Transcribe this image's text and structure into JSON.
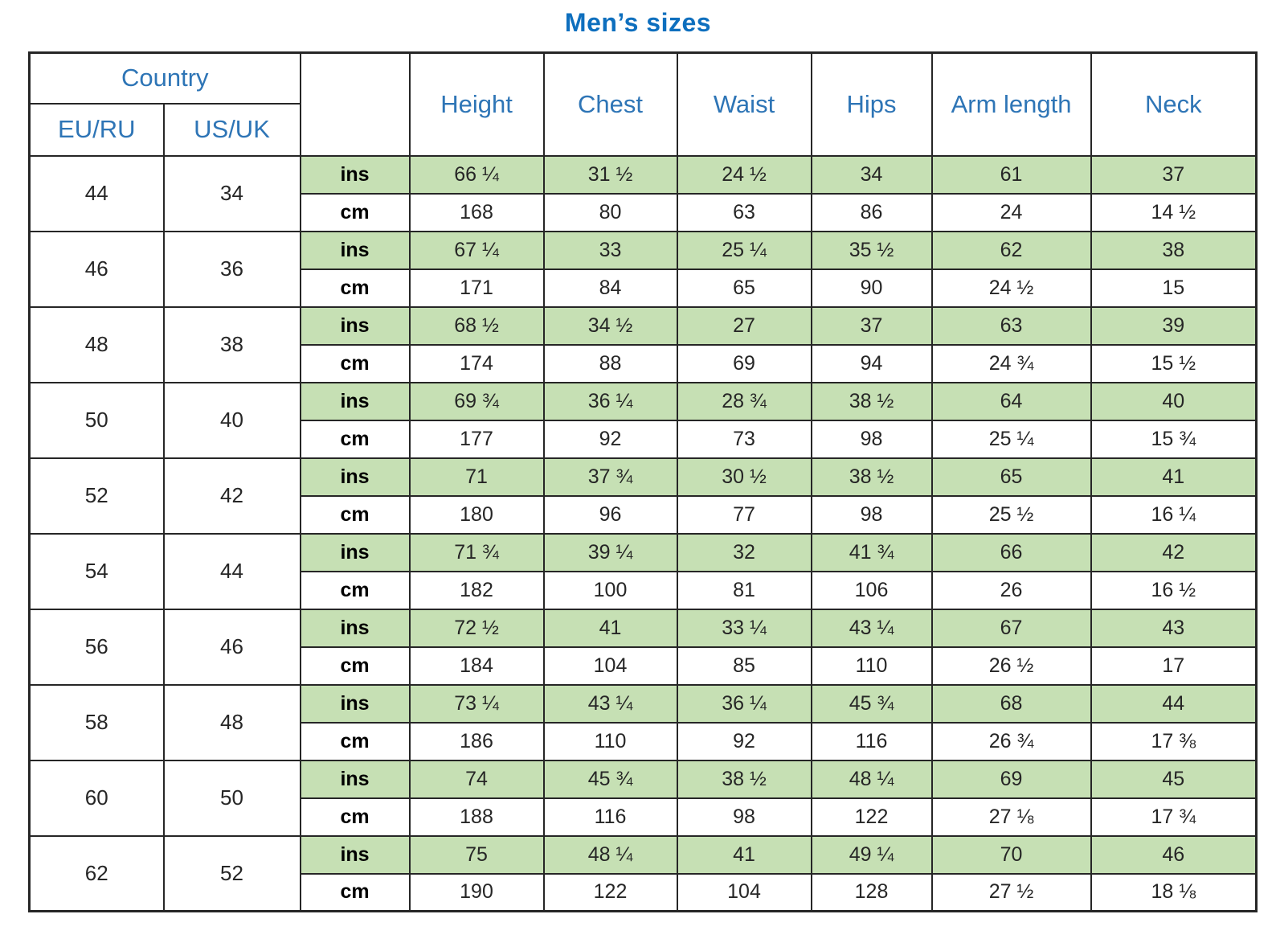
{
  "title": "Men’s sizes",
  "colors": {
    "row_green": "#c6e0b4",
    "header_blue": "#2e75b6",
    "title_blue": "#0e6fbe",
    "border": "#262626"
  },
  "header": {
    "country": "Country",
    "subcols": [
      "EU/RU",
      "US/UK"
    ],
    "unit_blank": "",
    "measures": [
      "Height",
      "Chest",
      "Waist",
      "Hips",
      "Arm length",
      "Neck"
    ]
  },
  "units": {
    "ins": "ins",
    "cm": "cm"
  },
  "sizes": [
    {
      "eu_ru": "44",
      "us_uk": "34",
      "ins": [
        "66 ¼",
        "31 ½",
        "24 ½",
        "34",
        "61",
        "37"
      ],
      "cm": [
        "168",
        "80",
        "63",
        "86",
        "24",
        "14 ½"
      ]
    },
    {
      "eu_ru": "46",
      "us_uk": "36",
      "ins": [
        "67 ¼",
        "33",
        "25 ¼",
        "35 ½",
        "62",
        "38"
      ],
      "cm": [
        "171",
        "84",
        "65",
        "90",
        "24 ½",
        "15"
      ]
    },
    {
      "eu_ru": "48",
      "us_uk": "38",
      "ins": [
        "68 ½",
        "34 ½",
        "27",
        "37",
        "63",
        "39"
      ],
      "cm": [
        "174",
        "88",
        "69",
        "94",
        "24 ¾",
        "15 ½"
      ]
    },
    {
      "eu_ru": "50",
      "us_uk": "40",
      "ins": [
        "69 ¾",
        "36 ¼",
        "28 ¾",
        "38 ½",
        "64",
        "40"
      ],
      "cm": [
        "177",
        "92",
        "73",
        "98",
        "25 ¼",
        "15 ¾"
      ]
    },
    {
      "eu_ru": "52",
      "us_uk": "42",
      "ins": [
        "71",
        "37 ¾",
        "30 ½",
        "38 ½",
        "65",
        "41"
      ],
      "cm": [
        "180",
        "96",
        "77",
        "98",
        "25 ½",
        "16 ¼"
      ]
    },
    {
      "eu_ru": "54",
      "us_uk": "44",
      "ins": [
        "71 ¾",
        "39 ¼",
        "32",
        "41 ¾",
        "66",
        "42"
      ],
      "cm": [
        "182",
        "100",
        "81",
        "106",
        "26",
        "16 ½"
      ]
    },
    {
      "eu_ru": "56",
      "us_uk": "46",
      "ins": [
        "72 ½",
        "41",
        "33 ¼",
        "43 ¼",
        "67",
        "43"
      ],
      "cm": [
        "184",
        "104",
        "85",
        "110",
        "26 ½",
        "17"
      ]
    },
    {
      "eu_ru": "58",
      "us_uk": "48",
      "ins": [
        "73 ¼",
        "43 ¼",
        "36 ¼",
        "45 ¾",
        "68",
        "44"
      ],
      "cm": [
        "186",
        "110",
        "92",
        "116",
        "26 ¾",
        "17 ⅜"
      ]
    },
    {
      "eu_ru": "60",
      "us_uk": "50",
      "ins": [
        "74",
        "45 ¾",
        "38 ½",
        "48 ¼",
        "69",
        "45"
      ],
      "cm": [
        "188",
        "116",
        "98",
        "122",
        "27 ⅛",
        "17 ¾"
      ]
    },
    {
      "eu_ru": "62",
      "us_uk": "52",
      "ins": [
        "75",
        "48 ¼",
        "41",
        "49 ¼",
        "70",
        "46"
      ],
      "cm": [
        "190",
        "122",
        "104",
        "128",
        "27 ½",
        "18 ⅛"
      ]
    }
  ]
}
